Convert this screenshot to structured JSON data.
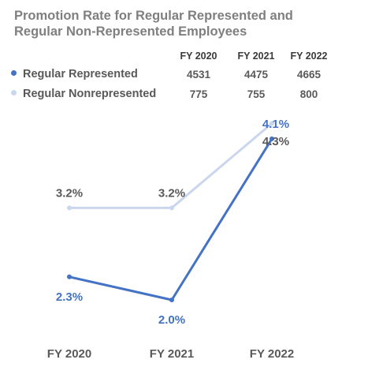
{
  "title_line1": "Promotion Rate for Regular Represented and",
  "title_line2": "Regular Non-Represented Employees",
  "table": {
    "columns": [
      "FY 2020",
      "FY 2021",
      "FY 2022"
    ],
    "rows": [
      {
        "label": "Regular Represented",
        "color": "#4472c4",
        "values": [
          "4531",
          "4475",
          "4665"
        ]
      },
      {
        "label": "Regular Nonrepresented",
        "color": "#c9d6ee",
        "values": [
          "775",
          "755",
          "800"
        ]
      }
    ]
  },
  "chart_data": {
    "type": "line",
    "categories": [
      "FY 2020",
      "FY 2021",
      "FY 2022"
    ],
    "series": [
      {
        "name": "Regular Represented",
        "values": [
          2.3,
          2.0,
          4.1
        ],
        "labels": [
          "2.3%",
          "2.0%",
          "4.1%"
        ],
        "color": "#4472c4",
        "label_color": "#4472c4"
      },
      {
        "name": "Regular Nonrepresented",
        "values": [
          3.2,
          3.2,
          4.3
        ],
        "labels": [
          "3.2%",
          "3.2%",
          "4.3%"
        ],
        "color": "#c9d6ee",
        "label_color": "#595959"
      }
    ],
    "title": "",
    "xlabel": "",
    "ylabel": "",
    "grid": false
  }
}
